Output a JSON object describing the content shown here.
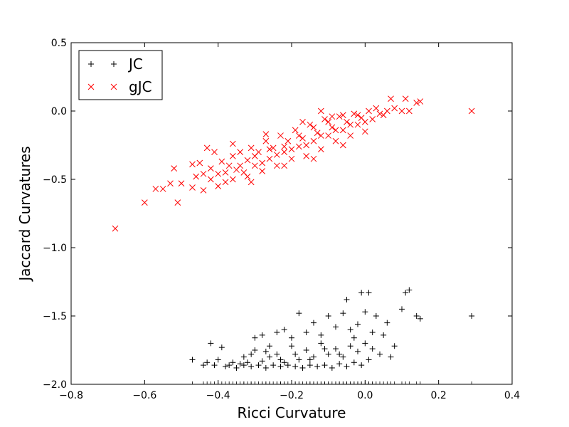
{
  "chart_data": {
    "type": "scatter",
    "xlabel": "Ricci Curvature",
    "ylabel": "Jaccard Curvatures",
    "xlim": [
      -0.8,
      0.4
    ],
    "ylim": [
      -2.0,
      0.5
    ],
    "xticks": [
      -0.8,
      -0.6,
      -0.4,
      -0.2,
      0.0,
      0.2,
      0.4
    ],
    "xtick_labels": [
      "−0.8",
      "−0.6",
      "−0.4",
      "−0.2",
      "0.0",
      "0.2",
      "0.4"
    ],
    "yticks": [
      -2.0,
      -1.5,
      -1.0,
      -0.5,
      0.0,
      0.5
    ],
    "ytick_labels": [
      "−2.0",
      "−1.5",
      "−1.0",
      "−0.5",
      "0.0",
      "0.5"
    ],
    "grid": false,
    "legend_position": "top-left",
    "series": [
      {
        "name": "JC",
        "marker": "plus",
        "color": "#000000",
        "points": [
          [
            -0.47,
            -1.82
          ],
          [
            -0.44,
            -1.86
          ],
          [
            -0.43,
            -1.84
          ],
          [
            -0.42,
            -1.7
          ],
          [
            -0.41,
            -1.86
          ],
          [
            -0.4,
            -1.82
          ],
          [
            -0.39,
            -1.73
          ],
          [
            -0.38,
            -1.87
          ],
          [
            -0.37,
            -1.86
          ],
          [
            -0.36,
            -1.84
          ],
          [
            -0.35,
            -1.88
          ],
          [
            -0.34,
            -1.85
          ],
          [
            -0.33,
            -1.86
          ],
          [
            -0.32,
            -1.84
          ],
          [
            -0.31,
            -1.87
          ],
          [
            -0.3,
            -1.75
          ],
          [
            -0.29,
            -1.86
          ],
          [
            -0.28,
            -1.83
          ],
          [
            -0.27,
            -1.88
          ],
          [
            -0.26,
            -1.8
          ],
          [
            -0.25,
            -1.86
          ],
          [
            -0.24,
            -1.78
          ],
          [
            -0.23,
            -1.87
          ],
          [
            -0.22,
            -1.84
          ],
          [
            -0.21,
            -1.86
          ],
          [
            -0.2,
            -1.72
          ],
          [
            -0.19,
            -1.87
          ],
          [
            -0.18,
            -1.82
          ],
          [
            -0.17,
            -1.88
          ],
          [
            -0.16,
            -1.75
          ],
          [
            -0.15,
            -1.86
          ],
          [
            -0.14,
            -1.8
          ],
          [
            -0.13,
            -1.87
          ],
          [
            -0.12,
            -1.7
          ],
          [
            -0.11,
            -1.86
          ],
          [
            -0.1,
            -1.78
          ],
          [
            -0.09,
            -1.88
          ],
          [
            -0.08,
            -1.74
          ],
          [
            -0.07,
            -1.85
          ],
          [
            -0.06,
            -1.8
          ],
          [
            -0.05,
            -1.87
          ],
          [
            -0.04,
            -1.72
          ],
          [
            -0.03,
            -1.84
          ],
          [
            -0.02,
            -1.76
          ],
          [
            -0.01,
            -1.86
          ],
          [
            0.0,
            -1.7
          ],
          [
            0.01,
            -1.82
          ],
          [
            0.02,
            -1.74
          ],
          [
            0.03,
            -1.5
          ],
          [
            0.05,
            -1.64
          ],
          [
            0.06,
            -1.55
          ],
          [
            0.07,
            -1.8
          ],
          [
            0.08,
            -1.72
          ],
          [
            0.1,
            -1.45
          ],
          [
            0.11,
            -1.33
          ],
          [
            0.12,
            -1.31
          ],
          [
            0.14,
            -1.5
          ],
          [
            0.15,
            -1.52
          ],
          [
            0.29,
            -1.5
          ],
          [
            -0.3,
            -1.66
          ],
          [
            -0.28,
            -1.64
          ],
          [
            -0.26,
            -1.72
          ],
          [
            -0.24,
            -1.62
          ],
          [
            -0.22,
            -1.6
          ],
          [
            -0.2,
            -1.66
          ],
          [
            -0.18,
            -1.48
          ],
          [
            -0.16,
            -1.62
          ],
          [
            -0.14,
            -1.55
          ],
          [
            -0.12,
            -1.64
          ],
          [
            -0.1,
            -1.5
          ],
          [
            -0.08,
            -1.58
          ],
          [
            -0.06,
            -1.48
          ],
          [
            -0.05,
            -1.38
          ],
          [
            -0.04,
            -1.6
          ],
          [
            -0.02,
            -1.56
          ],
          [
            -0.01,
            -1.33
          ],
          [
            0.01,
            -1.33
          ],
          [
            0.0,
            -1.47
          ],
          [
            0.02,
            -1.62
          ],
          [
            -0.33,
            -1.8
          ],
          [
            -0.31,
            -1.78
          ],
          [
            -0.27,
            -1.76
          ],
          [
            -0.23,
            -1.82
          ],
          [
            -0.19,
            -1.78
          ],
          [
            -0.15,
            -1.82
          ],
          [
            -0.11,
            -1.74
          ],
          [
            -0.07,
            -1.78
          ],
          [
            -0.03,
            -1.66
          ],
          [
            0.04,
            -1.78
          ]
        ]
      },
      {
        "name": "gJC",
        "marker": "x",
        "color": "#ff0000",
        "points": [
          [
            -0.68,
            -0.86
          ],
          [
            -0.6,
            -0.67
          ],
          [
            -0.57,
            -0.57
          ],
          [
            -0.55,
            -0.57
          ],
          [
            -0.53,
            -0.53
          ],
          [
            -0.52,
            -0.42
          ],
          [
            -0.51,
            -0.67
          ],
          [
            -0.5,
            -0.53
          ],
          [
            -0.47,
            -0.56
          ],
          [
            -0.46,
            -0.48
          ],
          [
            -0.45,
            -0.38
          ],
          [
            -0.44,
            -0.58
          ],
          [
            -0.43,
            -0.27
          ],
          [
            -0.42,
            -0.42
          ],
          [
            -0.41,
            -0.3
          ],
          [
            -0.4,
            -0.46
          ],
          [
            -0.39,
            -0.37
          ],
          [
            -0.38,
            -0.52
          ],
          [
            -0.37,
            -0.4
          ],
          [
            -0.36,
            -0.33
          ],
          [
            -0.35,
            -0.43
          ],
          [
            -0.34,
            -0.3
          ],
          [
            -0.33,
            -0.45
          ],
          [
            -0.32,
            -0.36
          ],
          [
            -0.31,
            -0.27
          ],
          [
            -0.3,
            -0.4
          ],
          [
            -0.29,
            -0.3
          ],
          [
            -0.28,
            -0.44
          ],
          [
            -0.27,
            -0.22
          ],
          [
            -0.26,
            -0.35
          ],
          [
            -0.25,
            -0.27
          ],
          [
            -0.24,
            -0.4
          ],
          [
            -0.23,
            -0.18
          ],
          [
            -0.22,
            -0.3
          ],
          [
            -0.21,
            -0.22
          ],
          [
            -0.2,
            -0.35
          ],
          [
            -0.19,
            -0.14
          ],
          [
            -0.18,
            -0.26
          ],
          [
            -0.17,
            -0.2
          ],
          [
            -0.16,
            -0.33
          ],
          [
            -0.15,
            -0.1
          ],
          [
            -0.14,
            -0.22
          ],
          [
            -0.13,
            -0.16
          ],
          [
            -0.12,
            -0.28
          ],
          [
            -0.11,
            -0.06
          ],
          [
            -0.1,
            -0.18
          ],
          [
            -0.09,
            -0.12
          ],
          [
            -0.08,
            -0.22
          ],
          [
            -0.07,
            -0.04
          ],
          [
            -0.06,
            -0.14
          ],
          [
            -0.05,
            -0.08
          ],
          [
            -0.04,
            -0.18
          ],
          [
            -0.03,
            -0.02
          ],
          [
            -0.02,
            -0.1
          ],
          [
            -0.01,
            -0.05
          ],
          [
            0.0,
            -0.15
          ],
          [
            0.01,
            0.0
          ],
          [
            0.02,
            -0.06
          ],
          [
            0.04,
            -0.02
          ],
          [
            0.06,
            0.0
          ],
          [
            0.07,
            0.09
          ],
          [
            0.08,
            0.02
          ],
          [
            0.1,
            0.0
          ],
          [
            0.11,
            0.09
          ],
          [
            0.12,
            0.0
          ],
          [
            0.14,
            0.06
          ],
          [
            0.15,
            0.07
          ],
          [
            0.29,
            0.0
          ],
          [
            -0.44,
            -0.46
          ],
          [
            -0.42,
            -0.5
          ],
          [
            -0.4,
            -0.55
          ],
          [
            -0.38,
            -0.45
          ],
          [
            -0.36,
            -0.5
          ],
          [
            -0.34,
            -0.4
          ],
          [
            -0.32,
            -0.48
          ],
          [
            -0.3,
            -0.33
          ],
          [
            -0.28,
            -0.38
          ],
          [
            -0.26,
            -0.28
          ],
          [
            -0.24,
            -0.32
          ],
          [
            -0.22,
            -0.26
          ],
          [
            -0.2,
            -0.28
          ],
          [
            -0.18,
            -0.18
          ],
          [
            -0.16,
            -0.25
          ],
          [
            -0.14,
            -0.12
          ],
          [
            -0.12,
            -0.18
          ],
          [
            -0.1,
            -0.08
          ],
          [
            -0.08,
            -0.14
          ],
          [
            -0.06,
            -0.03
          ],
          [
            -0.04,
            -0.1
          ],
          [
            -0.02,
            -0.03
          ],
          [
            0.0,
            -0.08
          ],
          [
            0.03,
            0.02
          ],
          [
            0.05,
            -0.03
          ],
          [
            -0.47,
            -0.39
          ],
          [
            -0.36,
            -0.24
          ],
          [
            -0.27,
            -0.17
          ],
          [
            -0.17,
            -0.08
          ],
          [
            -0.14,
            -0.35
          ],
          [
            -0.06,
            -0.25
          ],
          [
            -0.12,
            0.0
          ],
          [
            -0.09,
            -0.04
          ],
          [
            -0.22,
            -0.4
          ],
          [
            -0.31,
            -0.52
          ]
        ]
      }
    ]
  }
}
